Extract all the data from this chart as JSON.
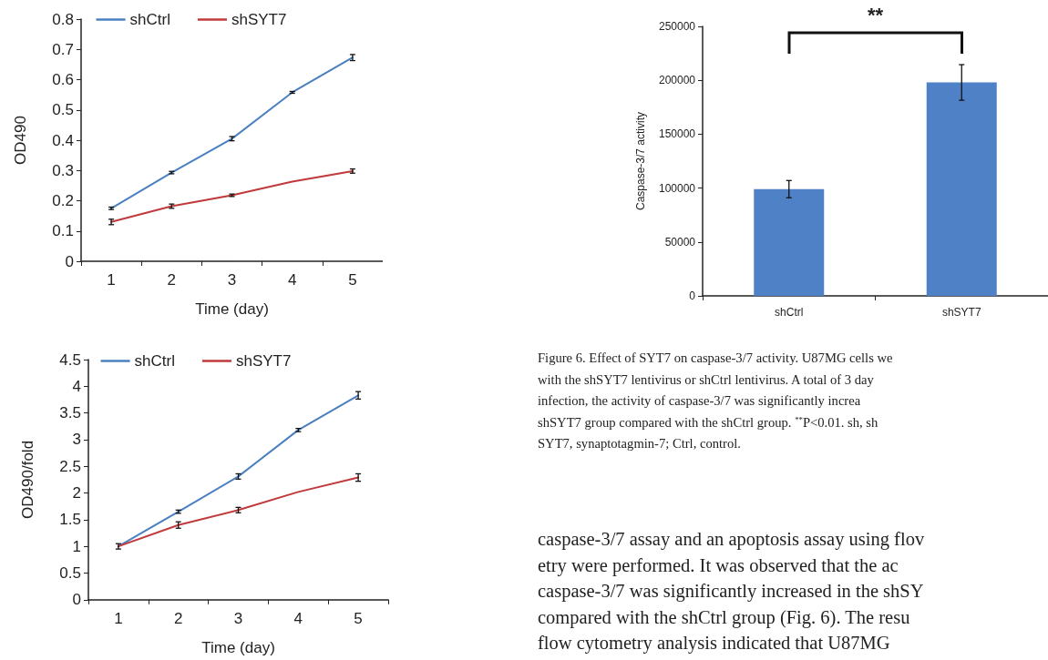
{
  "chart_data": [
    {
      "type": "line",
      "xlabel": "Time (day)",
      "ylabel": "OD490",
      "categories": [
        "1",
        "2",
        "3",
        "4",
        "5"
      ],
      "ylim": [
        0,
        0.8
      ],
      "yticks": [
        0,
        0.1,
        0.2,
        0.3,
        0.4,
        0.5,
        0.6,
        0.7,
        0.8
      ],
      "grid": false,
      "legend": "top",
      "marker": "none",
      "line_style": "solid",
      "series": [
        {
          "name": "shCtrl",
          "color": "#4a7fc1",
          "values": [
            0.175,
            0.293,
            0.405,
            0.558,
            0.673
          ],
          "errors": [
            0.004,
            0.004,
            0.007,
            0.003,
            0.01
          ]
        },
        {
          "name": "shSYT7",
          "color": "#c0393b",
          "values": [
            0.13,
            0.182,
            0.218,
            0.263,
            0.298
          ],
          "errors": [
            0.009,
            0.007,
            0.004,
            null,
            0.007
          ]
        }
      ]
    },
    {
      "type": "line",
      "xlabel": "Time (day)",
      "ylabel": "OD490/fold",
      "categories": [
        "1",
        "2",
        "3",
        "4",
        "5"
      ],
      "ylim": [
        0,
        4.5
      ],
      "yticks": [
        0,
        0.5,
        1,
        1.5,
        2,
        2.5,
        3,
        3.5,
        4,
        4.5
      ],
      "grid": false,
      "legend": "top",
      "marker": "none",
      "line_style": "solid",
      "series": [
        {
          "name": "shCtrl",
          "color": "#4a7fc1",
          "values": [
            1.0,
            1.65,
            2.31,
            3.18,
            3.83
          ],
          "errors": [
            0.05,
            0.03,
            0.05,
            0.03,
            0.07
          ]
        },
        {
          "name": "shSYT7",
          "color": "#c0393b",
          "values": [
            1.0,
            1.4,
            1.68,
            2.02,
            2.29
          ],
          "errors": [
            null,
            0.06,
            0.05,
            null,
            0.07
          ]
        }
      ]
    },
    {
      "type": "bar",
      "ylabel": "Caspase-3/7 activity",
      "categories": [
        "shCtrl",
        "shSYT7"
      ],
      "ylim": [
        0,
        250000
      ],
      "yticks": [
        0,
        50000,
        100000,
        150000,
        200000,
        250000
      ],
      "grid": false,
      "legend": false,
      "values": [
        99000,
        198000
      ],
      "errors": [
        8000,
        16500
      ],
      "color": "#4f81c6",
      "annotations": [
        "**",
        "Figure 6. Effect of SYT7 on caspase-3/7 activity. U87MG cells we\nwith the shSYT7 lentivirus or shCtrl lentivirus. A total of 3 day\ninfection, the activity of caspase-3/7 was significantly increa\nshSYT7 group compared with the shCtrl group. $^{**}$P<0.01. sh, sh\nSYT7, synaptotagmin-7; Ctrl, control.",
        "caspase-3/7 assay and an apoptosis assay using flov\netry were performed. It was observed that the ac\ncaspase-3/7 was significantly increased in the shSY\ncompared with the shCtrl group (Fig. 6). The resu\nflow cytometry analysis indicated that U87MG"
      ]
    }
  ]
}
